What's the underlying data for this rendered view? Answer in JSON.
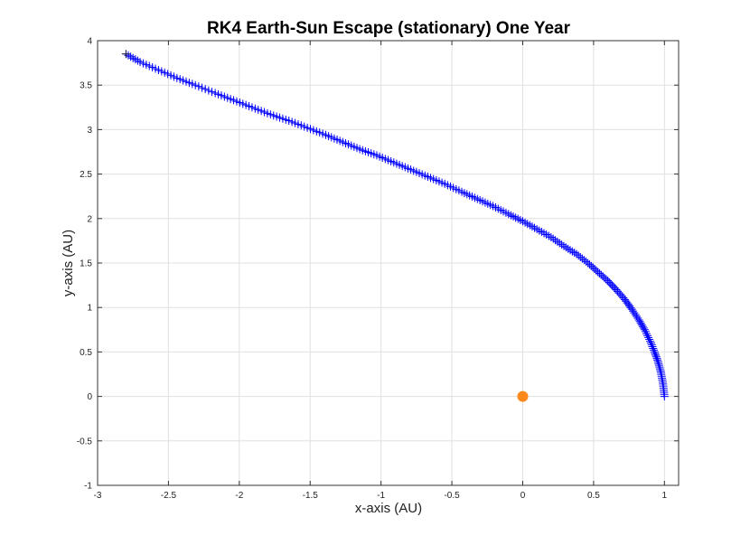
{
  "chart_data": {
    "type": "scatter",
    "title": "RK4 Earth-Sun Escape (stationary) One Year",
    "xlabel": "x-axis (AU)",
    "ylabel": "y-axis (AU)",
    "xlim": [
      -3,
      1.1
    ],
    "ylim": [
      -1,
      4
    ],
    "xticks": [
      -3,
      -2.5,
      -2,
      -1.5,
      -1,
      -0.5,
      0,
      0.5,
      1
    ],
    "xtick_labels": [
      "-3",
      "-2.5",
      "-2",
      "-1.5",
      "-1",
      "-0.5",
      "0",
      "0.5",
      "1"
    ],
    "yticks": [
      -1,
      -0.5,
      0,
      0.5,
      1,
      1.5,
      2,
      2.5,
      3,
      3.5,
      4
    ],
    "ytick_labels": [
      "-1",
      "-0.5",
      "0",
      "0.5",
      "1",
      "1.5",
      "2",
      "2.5",
      "3",
      "3.5",
      "4"
    ],
    "grid": true,
    "series": [
      {
        "marker": "plus",
        "color": "#0000ff",
        "points": [
          [
            1.0,
            0.0
          ],
          [
            0.99,
            0.14
          ],
          [
            0.975,
            0.27
          ],
          [
            0.955,
            0.39
          ],
          [
            0.93,
            0.5
          ],
          [
            0.9,
            0.62
          ],
          [
            0.86,
            0.75
          ],
          [
            0.82,
            0.86
          ],
          [
            0.77,
            0.98
          ],
          [
            0.72,
            1.09
          ],
          [
            0.66,
            1.2
          ],
          [
            0.6,
            1.3
          ],
          [
            0.53,
            1.4
          ],
          [
            0.46,
            1.5
          ],
          [
            0.38,
            1.6
          ],
          [
            0.29,
            1.69
          ],
          [
            0.2,
            1.79
          ],
          [
            0.1,
            1.88
          ],
          [
            0.0,
            1.97
          ],
          [
            -0.1,
            2.05
          ],
          [
            -0.21,
            2.14
          ],
          [
            -0.32,
            2.22
          ],
          [
            -0.43,
            2.3
          ],
          [
            -0.55,
            2.39
          ],
          [
            -0.67,
            2.47
          ],
          [
            -0.79,
            2.55
          ],
          [
            -0.91,
            2.63
          ],
          [
            -1.03,
            2.71
          ],
          [
            -1.15,
            2.78
          ],
          [
            -1.27,
            2.86
          ],
          [
            -1.39,
            2.94
          ],
          [
            -1.52,
            3.02
          ],
          [
            -1.65,
            3.1
          ],
          [
            -1.78,
            3.17
          ],
          [
            -1.91,
            3.25
          ],
          [
            -2.04,
            3.33
          ],
          [
            -2.17,
            3.41
          ],
          [
            -2.31,
            3.5
          ],
          [
            -2.44,
            3.58
          ],
          [
            -2.57,
            3.67
          ],
          [
            -2.7,
            3.76
          ],
          [
            -2.8,
            3.85
          ]
        ]
      },
      {
        "marker": "circle",
        "color": "#ff8a1c",
        "points": [
          [
            0.0,
            0.0
          ]
        ]
      }
    ]
  }
}
